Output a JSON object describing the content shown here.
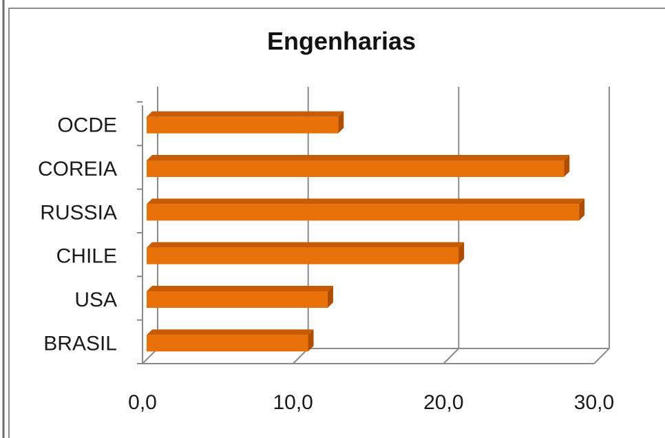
{
  "chart_data": {
    "type": "bar",
    "orientation": "horizontal",
    "three_d": true,
    "title": "Engenharias",
    "xlabel": "",
    "ylabel": "",
    "categories": [
      "OCDE",
      "COREIA",
      "RUSSIA",
      "CHILE",
      "USA",
      "BRASIL"
    ],
    "values": [
      13.0,
      28.0,
      29.0,
      21.0,
      12.3,
      11.0
    ],
    "xlim": [
      0,
      30
    ],
    "x_ticks": [
      0,
      10,
      20,
      30
    ],
    "x_tick_labels": [
      "0,0",
      "10,0",
      "20,0",
      "30,0"
    ],
    "grid": "vertical",
    "legend": "none",
    "bar_color": "#E8710A",
    "bar_side_color": "#B04E00",
    "bar_top_color": "#C75C05"
  }
}
